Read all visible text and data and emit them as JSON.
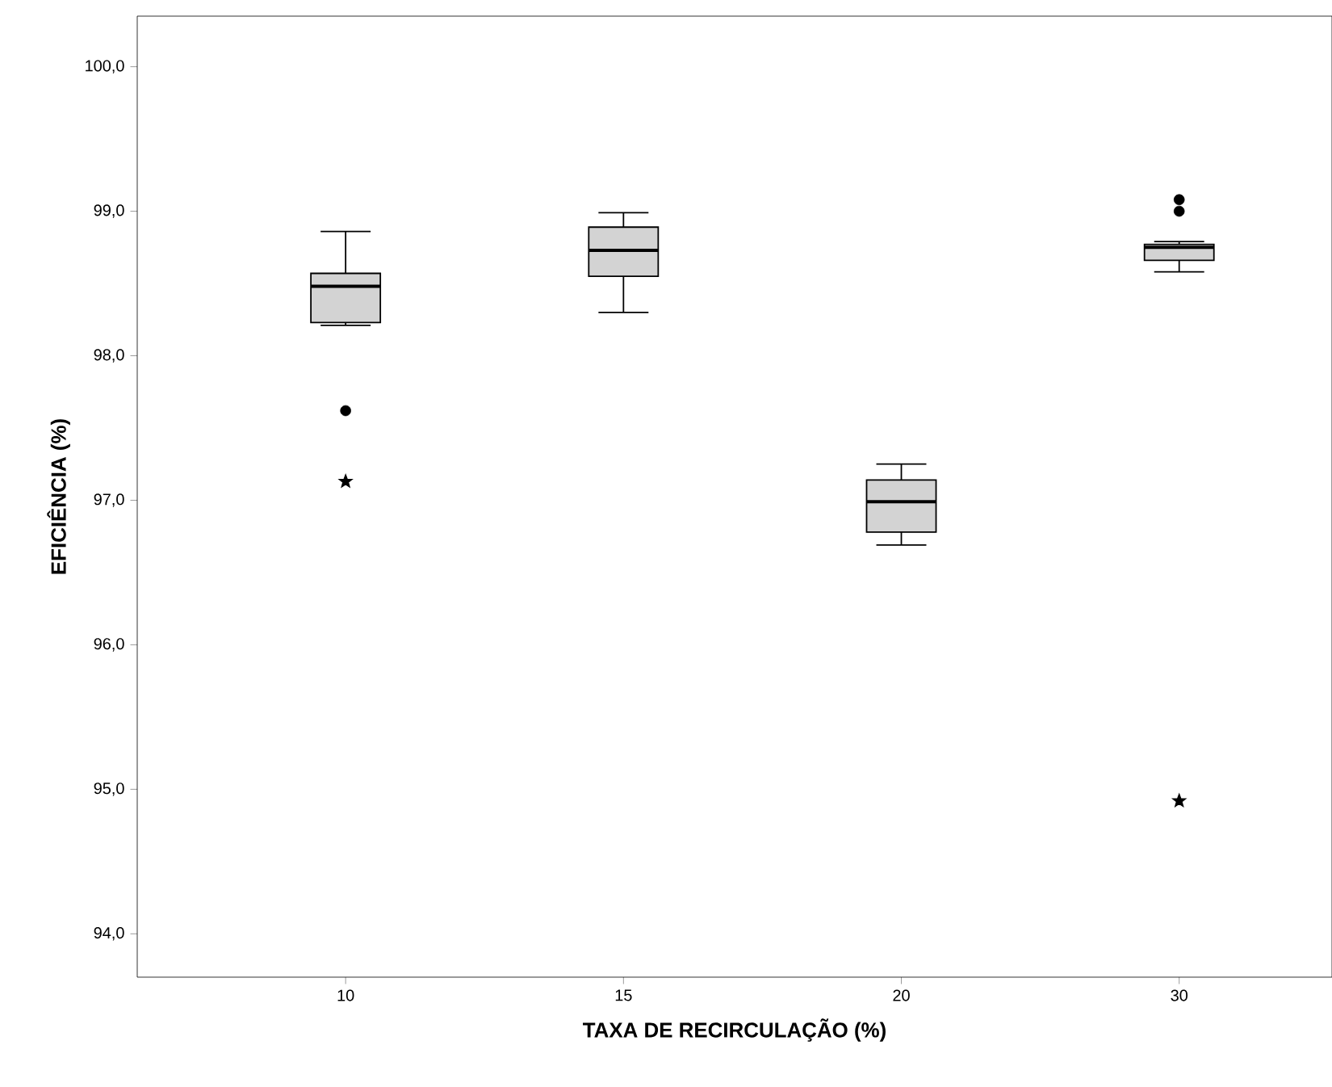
{
  "chart_data": {
    "type": "box",
    "xlabel": "TAXA DE RECIRCULAÇÃO (%)",
    "ylabel": "EFICIÊNCIA (%)",
    "categories": [
      "10",
      "15",
      "20",
      "30"
    ],
    "color": "#d3d3d3",
    "boxes": [
      {
        "low": 98.21,
        "q1": 98.23,
        "median": 98.48,
        "q3": 98.57,
        "high": 98.86,
        "outliers": [
          97.62
        ]
      },
      {
        "low": 98.3,
        "q1": 98.55,
        "median": 98.73,
        "q3": 98.89,
        "high": 98.99
      },
      {
        "low": 96.69,
        "q1": 96.78,
        "median": 96.99,
        "q3": 97.14,
        "high": 97.25
      },
      {
        "low": 98.58,
        "q1": 98.66,
        "median": 98.75,
        "q3": 98.77,
        "high": 98.79,
        "outliers": [
          99.0,
          99.08
        ]
      }
    ],
    "series": [
      {
        "type": "scatter",
        "marker": "star",
        "color": "#000000",
        "x": [
          "10",
          "30"
        ],
        "values": [
          97.13,
          94.92
        ]
      }
    ],
    "ylim": [
      93.7,
      100.35
    ],
    "yticks": [
      {
        "value": 94,
        "label": "94,0"
      },
      {
        "value": 95,
        "label": "95,0"
      },
      {
        "value": 96,
        "label": "96,0"
      },
      {
        "value": 97,
        "label": "97,0"
      },
      {
        "value": 98,
        "label": "98,0"
      },
      {
        "value": 99,
        "label": "99,0"
      },
      {
        "value": 100,
        "label": "100,0"
      }
    ],
    "grid": false
  }
}
